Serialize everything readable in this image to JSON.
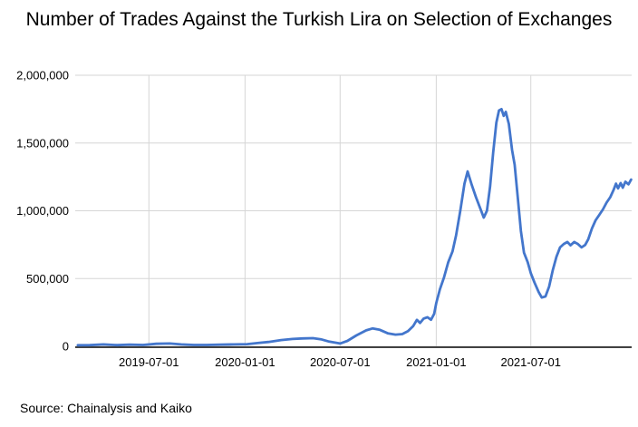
{
  "page": {
    "background": "#ffffff"
  },
  "header": {
    "title": "Number of Trades Against the Turkish Lira on Selection of Exchanges"
  },
  "footer": {
    "source_note": "Source: Chainalysis and Kaiko"
  },
  "chart_data": {
    "type": "line",
    "title": "Number of Trades Against the Turkish Lira on Selection of Exchanges",
    "xlabel": "",
    "ylabel": "",
    "grid": true,
    "legend": "none",
    "ylim": [
      0,
      2000000
    ],
    "x_range": [
      "2019-02-10",
      "2022-01-10"
    ],
    "line_color": "#4376cc",
    "grid_color": "#d6d6d6",
    "axis_color": "#424242",
    "y_ticks": [
      {
        "value": 0,
        "label": "0"
      },
      {
        "value": 500000,
        "label": "500,000"
      },
      {
        "value": 1000000,
        "label": "1,000,000"
      },
      {
        "value": 1500000,
        "label": "1,500,000"
      },
      {
        "value": 2000000,
        "label": "2,000,000"
      }
    ],
    "x_ticks": [
      {
        "date": "2019-07-01",
        "label": "2019-07-01"
      },
      {
        "date": "2020-01-01",
        "label": "2020-01-01"
      },
      {
        "date": "2020-07-01",
        "label": "2020-07-01"
      },
      {
        "date": "2021-01-01",
        "label": "2021-01-01"
      },
      {
        "date": "2021-07-01",
        "label": "2021-07-01"
      }
    ],
    "series": [
      {
        "name": "Number of trades against the Turkish lira",
        "points": [
          [
            "2019-02-15",
            8000
          ],
          [
            "2019-03-10",
            9000
          ],
          [
            "2019-04-05",
            14000
          ],
          [
            "2019-05-01",
            9000
          ],
          [
            "2019-05-25",
            13000
          ],
          [
            "2019-06-20",
            10000
          ],
          [
            "2019-07-15",
            19000
          ],
          [
            "2019-08-10",
            21000
          ],
          [
            "2019-09-01",
            14000
          ],
          [
            "2019-09-25",
            10000
          ],
          [
            "2019-10-20",
            10000
          ],
          [
            "2019-11-15",
            13000
          ],
          [
            "2019-12-10",
            14000
          ],
          [
            "2020-01-05",
            16000
          ],
          [
            "2020-01-25",
            24000
          ],
          [
            "2020-02-15",
            32000
          ],
          [
            "2020-03-10",
            46000
          ],
          [
            "2020-04-01",
            54000
          ],
          [
            "2020-04-20",
            58000
          ],
          [
            "2020-05-10",
            60000
          ],
          [
            "2020-05-25",
            52000
          ],
          [
            "2020-06-10",
            35000
          ],
          [
            "2020-07-01",
            21000
          ],
          [
            "2020-07-15",
            40000
          ],
          [
            "2020-08-01",
            80000
          ],
          [
            "2020-08-20",
            118000
          ],
          [
            "2020-09-01",
            132000
          ],
          [
            "2020-09-15",
            122000
          ],
          [
            "2020-10-01",
            95000
          ],
          [
            "2020-10-15",
            86000
          ],
          [
            "2020-10-28",
            90000
          ],
          [
            "2020-11-08",
            112000
          ],
          [
            "2020-11-18",
            150000
          ],
          [
            "2020-11-25",
            195000
          ],
          [
            "2020-12-01",
            172000
          ],
          [
            "2020-12-08",
            205000
          ],
          [
            "2020-12-15",
            215000
          ],
          [
            "2020-12-22",
            196000
          ],
          [
            "2020-12-28",
            240000
          ],
          [
            "2021-01-01",
            320000
          ],
          [
            "2021-01-08",
            420000
          ],
          [
            "2021-01-16",
            510000
          ],
          [
            "2021-01-24",
            620000
          ],
          [
            "2021-02-01",
            700000
          ],
          [
            "2021-02-08",
            820000
          ],
          [
            "2021-02-16",
            1000000
          ],
          [
            "2021-02-24",
            1200000
          ],
          [
            "2021-03-02",
            1290000
          ],
          [
            "2021-03-10",
            1190000
          ],
          [
            "2021-03-18",
            1100000
          ],
          [
            "2021-03-26",
            1020000
          ],
          [
            "2021-04-02",
            950000
          ],
          [
            "2021-04-08",
            1000000
          ],
          [
            "2021-04-14",
            1180000
          ],
          [
            "2021-04-20",
            1430000
          ],
          [
            "2021-04-26",
            1650000
          ],
          [
            "2021-05-01",
            1740000
          ],
          [
            "2021-05-06",
            1750000
          ],
          [
            "2021-05-10",
            1700000
          ],
          [
            "2021-05-14",
            1730000
          ],
          [
            "2021-05-20",
            1640000
          ],
          [
            "2021-05-26",
            1450000
          ],
          [
            "2021-05-31",
            1340000
          ],
          [
            "2021-06-06",
            1100000
          ],
          [
            "2021-06-12",
            850000
          ],
          [
            "2021-06-18",
            690000
          ],
          [
            "2021-06-25",
            620000
          ],
          [
            "2021-07-01",
            540000
          ],
          [
            "2021-07-08",
            470000
          ],
          [
            "2021-07-16",
            400000
          ],
          [
            "2021-07-22",
            360000
          ],
          [
            "2021-07-29",
            368000
          ],
          [
            "2021-08-05",
            440000
          ],
          [
            "2021-08-12",
            560000
          ],
          [
            "2021-08-19",
            660000
          ],
          [
            "2021-08-26",
            730000
          ],
          [
            "2021-09-02",
            755000
          ],
          [
            "2021-09-09",
            770000
          ],
          [
            "2021-09-15",
            745000
          ],
          [
            "2021-09-22",
            770000
          ],
          [
            "2021-09-29",
            755000
          ],
          [
            "2021-10-06",
            730000
          ],
          [
            "2021-10-13",
            748000
          ],
          [
            "2021-10-19",
            790000
          ],
          [
            "2021-10-26",
            870000
          ],
          [
            "2021-11-02",
            930000
          ],
          [
            "2021-11-09",
            970000
          ],
          [
            "2021-11-16",
            1010000
          ],
          [
            "2021-11-23",
            1060000
          ],
          [
            "2021-11-30",
            1100000
          ],
          [
            "2021-12-06",
            1150000
          ],
          [
            "2021-12-11",
            1200000
          ],
          [
            "2021-12-15",
            1165000
          ],
          [
            "2021-12-20",
            1205000
          ],
          [
            "2021-12-24",
            1170000
          ],
          [
            "2021-12-29",
            1215000
          ],
          [
            "2022-01-04",
            1195000
          ],
          [
            "2022-01-09",
            1230000
          ]
        ]
      }
    ]
  }
}
